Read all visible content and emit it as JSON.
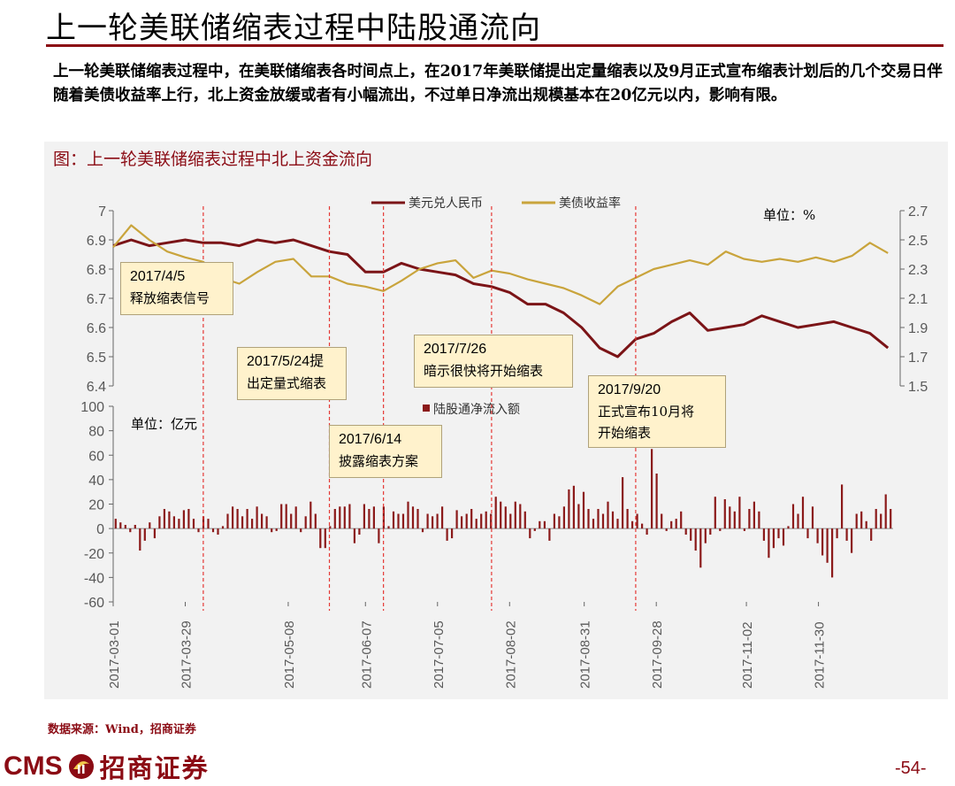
{
  "slide": {
    "title": "上一轮美联储缩表过程中陆股通流向",
    "intro": "上一轮美联储缩表过程中，在美联储缩表各时间点上，在2017年美联储提出定量缩表以及9月正式宣布缩表计划后的几个交易日伴随着美债收益率上行，北上资金放缓或者有小幅流出，不过单日净流出规模基本在20亿元以内，影响有限。",
    "chart_title": "图：上一轮美联储缩表过程中北上资金流向",
    "source": "数据来源：Wind，招商证券",
    "logo_text": "CMS",
    "logo_cn": "招商证券",
    "page_number": "-54-"
  },
  "colors": {
    "accent": "#8b0b14",
    "usdcny": "#7b1417",
    "yield": "#c9a43c",
    "bar": "#8b1a1a",
    "marker": "#e53935",
    "annotation_bg": "#fff2cc"
  },
  "chart_data": [
    {
      "type": "line",
      "legend": [
        "美元兑人民币",
        "美债收益率"
      ],
      "unit_label": "单位：%",
      "left_axis": {
        "ticks": [
          "7",
          "6.9",
          "6.8",
          "6.7",
          "6.6",
          "6.5",
          "6.4"
        ],
        "ylim": [
          6.4,
          7.0
        ]
      },
      "right_axis": {
        "ticks": [
          "2.7",
          "2.5",
          "2.3",
          "2.1",
          "1.9",
          "1.7",
          "1.5"
        ],
        "ylim": [
          1.5,
          2.7
        ]
      },
      "series": [
        {
          "name": "美元兑人民币",
          "axis": "left",
          "x": [
            "2017-03-01",
            "2017-03-08",
            "2017-03-15",
            "2017-03-22",
            "2017-03-29",
            "2017-04-05",
            "2017-04-12",
            "2017-04-19",
            "2017-04-26",
            "2017-05-03",
            "2017-05-10",
            "2017-05-17",
            "2017-05-24",
            "2017-05-31",
            "2017-06-07",
            "2017-06-14",
            "2017-06-21",
            "2017-06-28",
            "2017-07-05",
            "2017-07-12",
            "2017-07-19",
            "2017-07-26",
            "2017-08-02",
            "2017-08-09",
            "2017-08-16",
            "2017-08-23",
            "2017-08-30",
            "2017-09-06",
            "2017-09-13",
            "2017-09-20",
            "2017-09-27",
            "2017-10-04",
            "2017-10-11",
            "2017-10-18",
            "2017-10-25",
            "2017-11-01",
            "2017-11-08",
            "2017-11-15",
            "2017-11-22",
            "2017-11-29",
            "2017-12-06",
            "2017-12-13",
            "2017-12-20",
            "2017-12-27"
          ],
          "values": [
            6.88,
            6.9,
            6.88,
            6.89,
            6.9,
            6.89,
            6.89,
            6.88,
            6.9,
            6.89,
            6.9,
            6.88,
            6.86,
            6.85,
            6.79,
            6.79,
            6.82,
            6.8,
            6.79,
            6.78,
            6.75,
            6.74,
            6.72,
            6.68,
            6.68,
            6.65,
            6.6,
            6.53,
            6.5,
            6.56,
            6.58,
            6.62,
            6.65,
            6.59,
            6.6,
            6.61,
            6.64,
            6.62,
            6.6,
            6.61,
            6.62,
            6.6,
            6.58,
            6.53
          ]
        },
        {
          "name": "美债收益率",
          "axis": "right",
          "x": [
            "2017-03-01",
            "2017-03-08",
            "2017-03-15",
            "2017-03-22",
            "2017-03-29",
            "2017-04-05",
            "2017-04-12",
            "2017-04-19",
            "2017-04-26",
            "2017-05-03",
            "2017-05-10",
            "2017-05-17",
            "2017-05-24",
            "2017-05-31",
            "2017-06-07",
            "2017-06-14",
            "2017-06-21",
            "2017-06-28",
            "2017-07-05",
            "2017-07-12",
            "2017-07-19",
            "2017-07-26",
            "2017-08-02",
            "2017-08-09",
            "2017-08-16",
            "2017-08-23",
            "2017-08-30",
            "2017-09-06",
            "2017-09-13",
            "2017-09-20",
            "2017-09-27",
            "2017-10-04",
            "2017-10-11",
            "2017-10-18",
            "2017-10-25",
            "2017-11-01",
            "2017-11-08",
            "2017-11-15",
            "2017-11-22",
            "2017-11-29",
            "2017-12-06",
            "2017-12-13",
            "2017-12-20",
            "2017-12-27"
          ],
          "values": [
            2.45,
            2.6,
            2.5,
            2.42,
            2.38,
            2.35,
            2.24,
            2.2,
            2.28,
            2.35,
            2.37,
            2.25,
            2.25,
            2.2,
            2.18,
            2.15,
            2.22,
            2.3,
            2.34,
            2.36,
            2.24,
            2.29,
            2.27,
            2.23,
            2.2,
            2.17,
            2.12,
            2.06,
            2.18,
            2.24,
            2.3,
            2.33,
            2.36,
            2.33,
            2.42,
            2.37,
            2.35,
            2.37,
            2.35,
            2.38,
            2.35,
            2.39,
            2.48,
            2.41
          ]
        }
      ],
      "annotations": [
        {
          "date_label": "2017/4/5",
          "text": "释放缩表信号"
        },
        {
          "date_label": "2017/5/24提",
          "text": "出定量式缩表"
        },
        {
          "date_label": "2017/6/14",
          "text": "披露缩表方案"
        },
        {
          "date_label": "2017/7/26",
          "text": "暗示很快将开始缩表"
        },
        {
          "date_label": "2017/9/20",
          "text": "正式宣布10月将",
          "text2": "开始缩表"
        }
      ],
      "event_dates": [
        "2017-04-05",
        "2017-05-24",
        "2017-06-14",
        "2017-07-26",
        "2017-09-20"
      ]
    },
    {
      "type": "bar",
      "legend": [
        "陆股通净流入额"
      ],
      "unit_label": "单位：亿元",
      "y_ticks": [
        "100",
        "80",
        "60",
        "40",
        "20",
        "0",
        "-20",
        "-40",
        "-60"
      ],
      "ylim": [
        -60,
        100
      ],
      "x_tick_labels": [
        "2017-03-01",
        "2017-03-29",
        "2017-05-08",
        "2017-06-07",
        "2017-07-05",
        "2017-08-02",
        "2017-08-31",
        "2017-09-28",
        "2017-11-02",
        "2017-11-30"
      ],
      "values": [
        8,
        5,
        3,
        -3,
        3,
        -18,
        -10,
        5,
        -8,
        10,
        16,
        14,
        10,
        8,
        15,
        16,
        8,
        -3,
        10,
        8,
        -3,
        -5,
        2,
        12,
        18,
        16,
        10,
        16,
        8,
        18,
        12,
        10,
        -3,
        -2,
        20,
        20,
        12,
        18,
        -3,
        10,
        22,
        12,
        -16,
        -16,
        2,
        16,
        18,
        18,
        20,
        -12,
        -5,
        20,
        16,
        18,
        -12,
        18,
        2,
        14,
        12,
        12,
        22,
        18,
        16,
        -3,
        12,
        10,
        12,
        18,
        -10,
        -8,
        15,
        10,
        12,
        16,
        8,
        12,
        14,
        12,
        26,
        22,
        18,
        12,
        22,
        20,
        14,
        -8,
        -2,
        6,
        6,
        -10,
        12,
        10,
        18,
        32,
        35,
        20,
        30,
        16,
        8,
        16,
        12,
        22,
        14,
        8,
        42,
        16,
        6,
        12,
        4,
        -5,
        65,
        45,
        12,
        -2,
        6,
        8,
        14,
        -5,
        -10,
        -18,
        -32,
        -12,
        -5,
        26,
        -2,
        24,
        18,
        14,
        26,
        -2,
        16,
        22,
        14,
        -10,
        -24,
        -16,
        -8,
        -14,
        2,
        20,
        12,
        26,
        -8,
        18,
        -12,
        -22,
        -28,
        -40,
        -8,
        36,
        -10,
        -20,
        12,
        14,
        6,
        -10,
        16,
        12,
        28,
        16
      ]
    }
  ]
}
